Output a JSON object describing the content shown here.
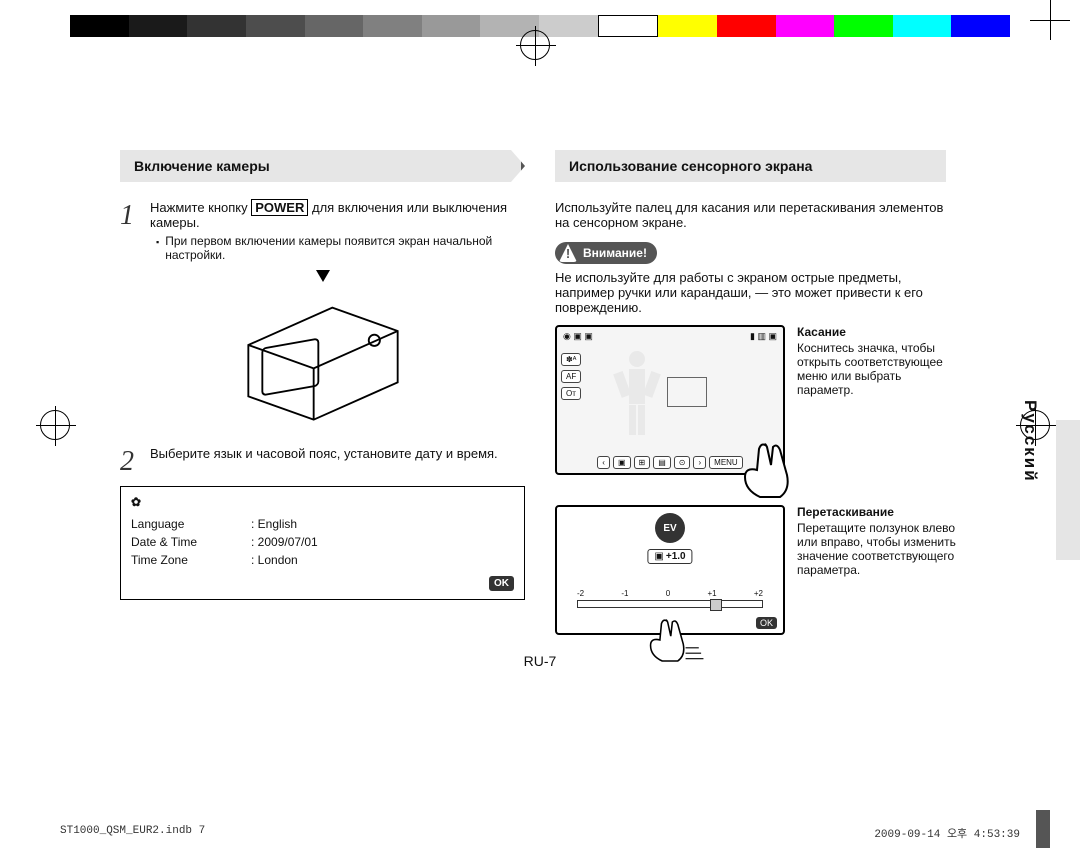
{
  "colorbar": [
    "#000000",
    "#1a1a1a",
    "#333333",
    "#4d4d4d",
    "#666666",
    "#808080",
    "#999999",
    "#b3b3b3",
    "#cccccc",
    "#ffffff",
    "#ffff00",
    "#ff0000",
    "#ff00ff",
    "#00ff00",
    "#00ffff",
    "#0000ff"
  ],
  "left": {
    "ribbon": "Включение камеры",
    "step1_prefix": "Нажмите кнопку ",
    "step1_power": "POWER",
    "step1_suffix": " для включения или выключения камеры.",
    "step1_note": "При первом включении камеры появится экран начальной настройки.",
    "step2": "Выберите язык и часовой пояс, установите дату и время.",
    "settings": {
      "rows": [
        {
          "k": "Language",
          "v": "English"
        },
        {
          "k": "Date & Time",
          "v": "2009/07/01"
        },
        {
          "k": "Time Zone",
          "v": "London"
        }
      ],
      "ok": "OK"
    }
  },
  "right": {
    "ribbon": "Использование сенсорного экрана",
    "intro": "Используйте палец для касания или перетаскивания элементов на сенсорном экране.",
    "warn_label": "Внимание!",
    "warn_text": "Не используйте для работы с экраном острые предметы, например ручки или карандаши, — это может привести к его повреждению.",
    "touch": {
      "title": "Касание",
      "text": "Коснитесь значка, чтобы открыть соответствующее меню или выбрать параметр."
    },
    "drag": {
      "title": "Перетаскивание",
      "text": "Перетащите ползунок влево или вправо, чтобы изменить значение соответствующего параметра."
    },
    "screen": {
      "left_icons": [
        "✽ᴬ",
        "AF",
        "Oᴛ"
      ],
      "bot_icons": [
        "‹",
        "▣",
        "⊞",
        "▤",
        "⊙",
        "›",
        "MENU"
      ],
      "ev_label": "EV",
      "ev_value": "+1.0",
      "slider_labels": [
        "-2",
        "-1",
        "0",
        "+1",
        "+2"
      ],
      "ok": "OK"
    }
  },
  "side_lang": "Русский",
  "page_num": "RU-7",
  "footer_left": "ST1000_QSM_EUR2.indb   7",
  "footer_right": "2009-09-14   오후 4:53:39"
}
